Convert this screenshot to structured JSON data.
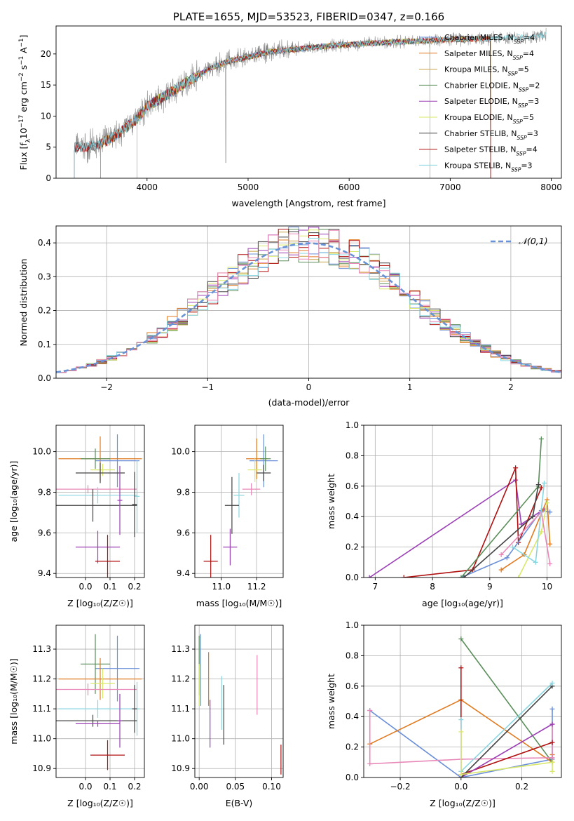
{
  "colors": {
    "chabrier_miles": "#6a8fd8",
    "salpeter_miles": "#e07b22",
    "kroupa_miles": "#c9a046",
    "chabrier_elodie": "#5a8e5a",
    "salpeter_elodie": "#9b3fb5",
    "kroupa_elodie": "#d9e86a",
    "chabrier_stelib": "#444444",
    "salpeter_stelib": "#b01010",
    "kroupa_stelib": "#8ad6e0",
    "data": "#808080",
    "pink": "#e888b8",
    "normal": "#6a93d6"
  },
  "legend": [
    "Chabrier MILES, N_SSP=4",
    "Salpeter MILES, N_SSP=4",
    "Kroupa MILES, N_SSP=5",
    "Chabrier ELODIE, N_SSP=2",
    "Salpeter ELODIE, N_SSP=3",
    "Kroupa ELODIE, N_SSP=5",
    "Chabrier STELIB, N_SSP=3",
    "Salpeter STELIB, N_SSP=4",
    "Kroupa STELIB, N_SSP=3"
  ],
  "chart_data": [
    {
      "type": "line",
      "title": "PLATE=1655, MJD=53523, FIBERID=0347, z=0.166",
      "xlabel": "wavelength [Angstrom, rest frame]",
      "ylabel": "Flux [f_λ 10^-17 erg cm^-2 s^-1 A^-1]",
      "xlim": [
        3100,
        8100
      ],
      "ylim": [
        0,
        24.5
      ],
      "xticks": [
        "4000",
        "5000",
        "6000",
        "7000",
        "8000"
      ],
      "yticks": [
        "0",
        "5",
        "10",
        "15",
        "20"
      ],
      "continuum": [
        [
          3280,
          5.0
        ],
        [
          3500,
          5.2
        ],
        [
          3600,
          6.0
        ],
        [
          3700,
          7.0
        ],
        [
          3900,
          9.5
        ],
        [
          4000,
          11.5
        ],
        [
          4200,
          13.5
        ],
        [
          4400,
          15.5
        ],
        [
          4600,
          17.5
        ],
        [
          4800,
          18.8
        ],
        [
          5000,
          19.5
        ],
        [
          5200,
          20.3
        ],
        [
          5500,
          20.8
        ],
        [
          5800,
          21.3
        ],
        [
          6000,
          21.5
        ],
        [
          6300,
          21.8
        ],
        [
          6600,
          22.0
        ],
        [
          7000,
          22.3
        ],
        [
          7400,
          22.5
        ],
        [
          7800,
          22.8
        ],
        [
          7950,
          23.0
        ]
      ]
    },
    {
      "type": "bar",
      "xlabel": "(data-model)/error",
      "ylabel": "Normed distribution",
      "xlim": [
        -2.5,
        2.5
      ],
      "ylim": [
        0,
        0.45
      ],
      "xticks": [
        "−2",
        "−1",
        "0",
        "1",
        "2"
      ],
      "yticks": [
        "0.0",
        "0.1",
        "0.2",
        "0.3",
        "0.4"
      ],
      "legend": "𝒩(0,1)"
    },
    {
      "type": "scatter",
      "xlabel": "Z [log₁₀(Z/Z☉)]",
      "ylabel": "age  [log₁₀(age/yr)]",
      "xlim": [
        -0.12,
        0.24
      ],
      "ylim": [
        9.38,
        10.13
      ],
      "xticks": [
        "0.0",
        "0.1",
        "0.2"
      ],
      "yticks": [
        "9.4",
        "9.6",
        "9.8",
        "10.0"
      ],
      "points": [
        {
          "c": "salpeter_miles",
          "x": 0.06,
          "dx": 0.17,
          "y": 9.965,
          "dy": 0.11
        },
        {
          "c": "chabrier_miles",
          "x": 0.13,
          "dx": 0.09,
          "y": 9.955,
          "dy": 0.13
        },
        {
          "c": "chabrier_elodie",
          "x": 0.04,
          "dx": 0.06,
          "y": 9.965,
          "dy": 0.05
        },
        {
          "c": "kroupa_elodie",
          "x": 0.07,
          "dx": 0.05,
          "y": 9.91,
          "dy": 0.03
        },
        {
          "c": "chabrier_stelib",
          "x": 0.06,
          "dx": 0.1,
          "y": 9.895,
          "dy": 0.05
        },
        {
          "c": "pink",
          "x": 0.01,
          "dx": 0.2,
          "y": 9.815,
          "dy": 0.02
        },
        {
          "c": "kroupa_stelib",
          "x": 0.05,
          "dx": 0.16,
          "y": 9.785,
          "dy": 0.04
        },
        {
          "c": "kroupa_stelib",
          "x": 0.21,
          "dx": 0.01,
          "y": 9.78,
          "dy": 0.18
        },
        {
          "c": "chabrier_stelib",
          "x": 0.03,
          "dx": 0.18,
          "y": 9.735,
          "dy": 0.08
        },
        {
          "c": "chabrier_stelib",
          "x": 0.2,
          "dx": 0.01,
          "y": 9.74,
          "dy": 0.16
        },
        {
          "c": "salpeter_elodie",
          "x": 0.14,
          "dx": 0.01,
          "y": 9.76,
          "dy": 0.17
        },
        {
          "c": "salpeter_elodie",
          "x": 0.05,
          "dx": 0.09,
          "y": 9.53,
          "dy": 0.08
        },
        {
          "c": "salpeter_stelib",
          "x": 0.09,
          "dx": 0.05,
          "y": 9.46,
          "dy": 0.13
        }
      ]
    },
    {
      "type": "scatter",
      "xlabel": "mass [log₁₀(M/M☉)]",
      "ylabel": "",
      "xlim": [
        10.85,
        11.35
      ],
      "ylim": [
        9.38,
        10.13
      ],
      "xticks": [
        "11.0",
        "11.2"
      ],
      "yticks": [
        "9.4",
        "9.6",
        "9.8",
        "10.0"
      ],
      "points": [
        {
          "c": "salpeter_miles",
          "x": 11.2,
          "dx": 0.06,
          "y": 9.965,
          "dy": 0.1
        },
        {
          "c": "chabrier_miles",
          "x": 11.24,
          "dx": 0.08,
          "y": 9.955,
          "dy": 0.13
        },
        {
          "c": "chabrier_elodie",
          "x": 11.25,
          "dx": 0.03,
          "y": 9.965,
          "dy": 0.06
        },
        {
          "c": "kroupa_elodie",
          "x": 11.19,
          "dx": 0.04,
          "y": 9.91,
          "dy": 0.06
        },
        {
          "c": "chabrier_stelib",
          "x": 11.24,
          "dx": 0.04,
          "y": 9.895,
          "dy": 0.04
        },
        {
          "c": "pink",
          "x": 11.17,
          "dx": 0.05,
          "y": 9.815,
          "dy": 0.03
        },
        {
          "c": "kroupa_stelib",
          "x": 11.1,
          "dx": 0.03,
          "y": 9.785,
          "dy": 0.11
        },
        {
          "c": "chabrier_stelib",
          "x": 11.06,
          "dx": 0.04,
          "y": 9.735,
          "dy": 0.14
        },
        {
          "c": "salpeter_elodie",
          "x": 11.05,
          "dx": 0.04,
          "y": 9.53,
          "dy": 0.09
        },
        {
          "c": "salpeter_stelib",
          "x": 10.94,
          "dx": 0.04,
          "y": 9.46,
          "dy": 0.13
        }
      ]
    },
    {
      "type": "line",
      "xlabel": "age  [log₁₀(age/yr)]",
      "ylabel": "mass weight",
      "xlim": [
        6.8,
        10.25
      ],
      "ylim": [
        0,
        1
      ],
      "xticks": [
        "7",
        "8",
        "9",
        "10"
      ],
      "yticks": [
        "0.0",
        "0.2",
        "0.4",
        "0.6",
        "0.8",
        "1.0"
      ],
      "series": [
        {
          "c": "salpeter_elodie",
          "pts": [
            [
              6.9,
              0.0
            ],
            [
              9.45,
              0.64
            ],
            [
              9.55,
              0.35
            ],
            [
              9.95,
              0.45
            ]
          ]
        },
        {
          "c": "salpeter_stelib",
          "pts": [
            [
              7.5,
              0.0
            ],
            [
              8.7,
              0.05
            ],
            [
              9.45,
              0.72
            ],
            [
              9.5,
              0.23
            ],
            [
              9.9,
              0.59
            ]
          ]
        },
        {
          "c": "chabrier_miles",
          "pts": [
            [
              8.5,
              0.0
            ],
            [
              9.3,
              0.13
            ],
            [
              9.9,
              0.44
            ],
            [
              10.05,
              0.43
            ]
          ]
        },
        {
          "c": "chabrier_elodie",
          "pts": [
            [
              8.5,
              0.0
            ],
            [
              9.85,
              0.6
            ],
            [
              9.9,
              0.91
            ]
          ]
        },
        {
          "c": "chabrier_stelib",
          "pts": [
            [
              8.55,
              0.0
            ],
            [
              9.75,
              0.4
            ],
            [
              9.85,
              0.61
            ]
          ]
        },
        {
          "c": "salpeter_miles",
          "pts": [
            [
              9.2,
              0.05
            ],
            [
              9.6,
              0.15
            ],
            [
              10.0,
              0.51
            ],
            [
              10.05,
              0.22
            ]
          ]
        },
        {
          "c": "kroupa_elodie",
          "pts": [
            [
              9.5,
              0.0
            ],
            [
              9.9,
              0.3
            ],
            [
              10.0,
              0.49
            ]
          ]
        },
        {
          "c": "pink",
          "pts": [
            [
              9.2,
              0.15
            ],
            [
              9.9,
              0.43
            ],
            [
              10.05,
              0.09
            ]
          ]
        },
        {
          "c": "kroupa_stelib",
          "pts": [
            [
              9.4,
              0.2
            ],
            [
              9.8,
              0.1
            ],
            [
              9.95,
              0.62
            ]
          ]
        }
      ]
    },
    {
      "type": "scatter",
      "xlabel": "Z [log₁₀(Z/Z☉)]",
      "ylabel": "mass [log₁₀(M/M☉)]",
      "xlim": [
        -0.12,
        0.24
      ],
      "ylim": [
        10.87,
        11.38
      ],
      "xticks": [
        "0.0",
        "0.1",
        "0.2"
      ],
      "yticks": [
        "10.9",
        "11.0",
        "11.1",
        "11.2",
        "11.3"
      ],
      "points": [
        {
          "c": "chabrier_miles",
          "x": 0.13,
          "dx": 0.09,
          "y": 11.235,
          "dy": 0.11
        },
        {
          "c": "chabrier_elodie",
          "x": 0.04,
          "dx": 0.06,
          "y": 11.25,
          "dy": 0.1
        },
        {
          "c": "salpeter_miles",
          "x": 0.06,
          "dx": 0.17,
          "y": 11.2,
          "dy": 0.07
        },
        {
          "c": "kroupa_elodie",
          "x": 0.07,
          "dx": 0.05,
          "y": 11.185,
          "dy": 0.05
        },
        {
          "c": "pink",
          "x": 0.01,
          "dx": 0.2,
          "y": 11.165,
          "dy": 0.02
        },
        {
          "c": "kroupa_stelib",
          "x": 0.05,
          "dx": 0.16,
          "y": 11.1,
          "dy": 0.03
        },
        {
          "c": "kroupa_stelib",
          "x": 0.21,
          "dx": 0.01,
          "y": 11.1,
          "dy": 0.09
        },
        {
          "c": "chabrier_stelib",
          "x": 0.03,
          "dx": 0.18,
          "y": 11.06,
          "dy": 0.02
        },
        {
          "c": "chabrier_stelib",
          "x": 0.2,
          "dx": 0.01,
          "y": 11.1,
          "dy": 0.08
        },
        {
          "c": "salpeter_elodie",
          "x": 0.14,
          "dx": 0.01,
          "y": 11.06,
          "dy": 0.09
        },
        {
          "c": "salpeter_elodie",
          "x": 0.05,
          "dx": 0.09,
          "y": 11.05,
          "dy": 0.01
        },
        {
          "c": "salpeter_stelib",
          "x": 0.09,
          "dx": 0.07,
          "y": 10.945,
          "dy": 0.05
        }
      ]
    },
    {
      "type": "scatter",
      "xlabel": "E(B-V)",
      "ylabel": "",
      "xlim": [
        -0.006,
        0.116
      ],
      "ylim": [
        10.87,
        11.38
      ],
      "xticks": [
        "0.00",
        "0.05",
        "0.10"
      ],
      "yticks": [
        "10.9",
        "11.0",
        "11.1",
        "11.2",
        "11.3"
      ],
      "points": [
        {
          "c": "chabrier_miles",
          "x": 0.002,
          "dx": 0,
          "y": 11.23,
          "dy": 0.12
        },
        {
          "c": "chabrier_elodie",
          "x": 0.0,
          "dx": 0,
          "y": 11.245,
          "dy": 0.1
        },
        {
          "c": "kroupa_elodie",
          "x": 0.0,
          "dx": 0,
          "y": 11.18,
          "dy": 0.07
        },
        {
          "c": "salpeter_miles",
          "x": 0.013,
          "dx": 0,
          "y": 11.2,
          "dy": 0.09
        },
        {
          "c": "salpeter_elodie",
          "x": 0.015,
          "dx": 0,
          "y": 11.05,
          "dy": 0.08
        },
        {
          "c": "kroupa_stelib",
          "x": 0.031,
          "dx": 0,
          "y": 11.12,
          "dy": 0.09
        },
        {
          "c": "chabrier_stelib",
          "x": 0.034,
          "dx": 0,
          "y": 11.08,
          "dy": 0.1
        },
        {
          "c": "pink",
          "x": 0.08,
          "dx": 0,
          "y": 11.18,
          "dy": 0.1
        },
        {
          "c": "salpeter_stelib",
          "x": 0.113,
          "dx": 0,
          "y": 10.93,
          "dy": 0.05
        }
      ]
    },
    {
      "type": "line",
      "xlabel": "Z [log₁₀(Z/Z☉)]",
      "ylabel": "mass weight",
      "xlim": [
        -0.32,
        0.33
      ],
      "ylim": [
        0,
        1
      ],
      "xticks": [
        "−0.2",
        "0.0",
        "0.2"
      ],
      "yticks": [
        "0.0",
        "0.2",
        "0.4",
        "0.6",
        "0.8",
        "1.0"
      ],
      "series": [
        {
          "c": "chabrier_miles",
          "pts": [
            [
              -0.3,
              0.44
            ],
            [
              0.0,
              0.0
            ],
            [
              0.3,
              0.12
            ],
            [
              0.3,
              0.45
            ]
          ]
        },
        {
          "c": "salpeter_miles",
          "pts": [
            [
              -0.3,
              0.22
            ],
            [
              0.0,
              0.51
            ],
            [
              0.3,
              0.1
            ],
            [
              0.3,
              0.15
            ]
          ]
        },
        {
          "c": "chabrier_elodie",
          "pts": [
            [
              0.0,
              0.91
            ],
            [
              0.3,
              0.1
            ]
          ]
        },
        {
          "c": "pink",
          "pts": [
            [
              -0.3,
              0.44
            ],
            [
              -0.3,
              0.09
            ],
            [
              0.0,
              0.12
            ],
            [
              0.3,
              0.13
            ],
            [
              0.3,
              0.35
            ]
          ]
        },
        {
          "c": "salpeter_stelib",
          "pts": [
            [
              0.0,
              0.72
            ],
            [
              0.0,
              0.02
            ],
            [
              0.3,
              0.23
            ]
          ]
        },
        {
          "c": "salpeter_elodie",
          "pts": [
            [
              0.0,
              0.0
            ],
            [
              0.3,
              0.35
            ]
          ]
        },
        {
          "c": "chabrier_stelib",
          "pts": [
            [
              0.0,
              0.0
            ],
            [
              0.3,
              0.6
            ]
          ]
        },
        {
          "c": "kroupa_stelib",
          "pts": [
            [
              0.0,
              0.38
            ],
            [
              0.0,
              0.04
            ],
            [
              0.3,
              0.62
            ]
          ]
        },
        {
          "c": "kroupa_elodie",
          "pts": [
            [
              0.0,
              0.3
            ],
            [
              0.0,
              0.02
            ],
            [
              0.3,
              0.1
            ],
            [
              0.3,
              0.04
            ]
          ]
        }
      ]
    }
  ]
}
